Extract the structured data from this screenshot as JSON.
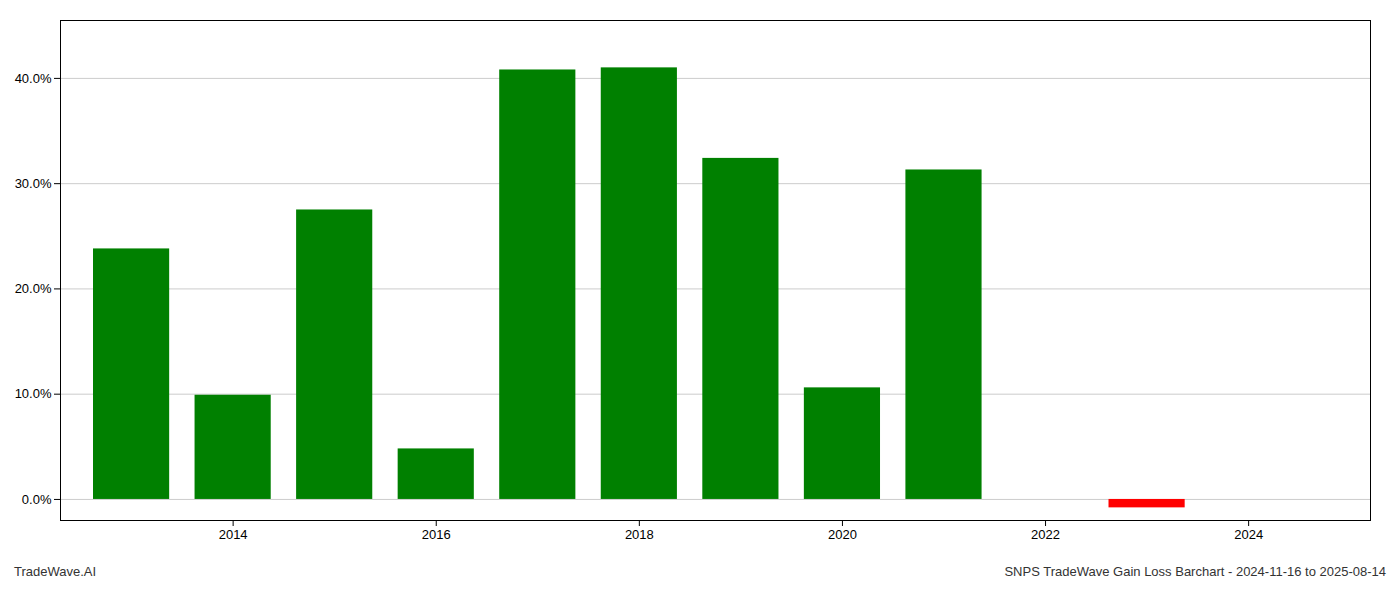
{
  "chart_data": {
    "type": "bar",
    "x": [
      2013,
      2014,
      2015,
      2016,
      2017,
      2018,
      2019,
      2020,
      2021,
      2023
    ],
    "values": [
      0.238,
      0.099,
      0.275,
      0.048,
      0.408,
      0.41,
      0.324,
      0.106,
      0.313,
      -0.008
    ],
    "colors": [
      "#008000",
      "#008000",
      "#008000",
      "#008000",
      "#008000",
      "#008000",
      "#008000",
      "#008000",
      "#008000",
      "#ff0000"
    ],
    "xlim": [
      2012.3,
      2025.2
    ],
    "xticks": [
      2014,
      2016,
      2018,
      2020,
      2022,
      2024
    ],
    "ylim": [
      -0.02,
      0.455
    ],
    "yticks": [
      {
        "value": 0.0,
        "label": "0.0%"
      },
      {
        "value": 0.1,
        "label": "10.0%"
      },
      {
        "value": 0.2,
        "label": "20.0%"
      },
      {
        "value": 0.3,
        "label": "30.0%"
      },
      {
        "value": 0.4,
        "label": "40.0%"
      }
    ],
    "grid": true,
    "annotations": [
      "TradeWave.AI",
      "SNPS TradeWave Gain Loss Barchart - 2024-11-16 to 2025-08-14"
    ]
  }
}
